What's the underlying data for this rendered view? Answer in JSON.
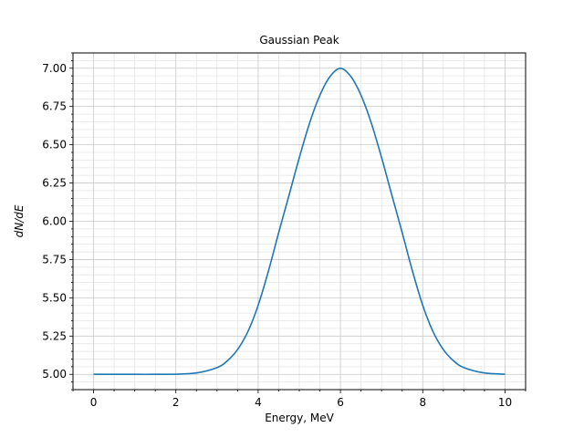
{
  "chart_data": {
    "type": "line",
    "title": "Gaussian Peak",
    "xlabel": "Energy, MeV",
    "ylabel": "dN/dE",
    "xlim": [
      -0.5,
      10.5
    ],
    "ylim": [
      4.9,
      7.1
    ],
    "x_ticks": [
      0,
      2,
      4,
      6,
      8,
      10
    ],
    "x_tick_labels": [
      "0",
      "2",
      "4",
      "6",
      "8",
      "10"
    ],
    "x_minor_step": 0.5,
    "y_ticks": [
      5.0,
      5.25,
      5.5,
      5.75,
      6.0,
      6.25,
      6.5,
      6.75,
      7.0
    ],
    "y_tick_labels": [
      "5.00",
      "5.25",
      "5.50",
      "5.75",
      "6.00",
      "6.25",
      "6.50",
      "6.75",
      "7.00"
    ],
    "y_minor_step": 0.05,
    "grid": "major and minor",
    "line_color": "#1f77b4",
    "series": [
      {
        "x": [
          0,
          0.5,
          1,
          1.5,
          2,
          2.5,
          3,
          3.25,
          3.5,
          3.75,
          4,
          4.25,
          4.5,
          4.75,
          5,
          5.25,
          5.5,
          5.75,
          6,
          6.25,
          6.5,
          6.75,
          7,
          7.25,
          7.5,
          7.75,
          8,
          8.25,
          8.5,
          8.75,
          9,
          9.5,
          10
        ],
        "values": [
          5.0,
          5.0,
          5.0,
          5.0,
          5.001,
          5.009,
          5.044,
          5.088,
          5.162,
          5.279,
          5.451,
          5.675,
          5.927,
          6.17,
          6.416,
          6.642,
          6.823,
          6.947,
          7.0,
          6.947,
          6.823,
          6.642,
          6.416,
          6.17,
          5.927,
          5.675,
          5.451,
          5.279,
          5.162,
          5.088,
          5.044,
          5.009,
          5.001
        ]
      }
    ]
  }
}
